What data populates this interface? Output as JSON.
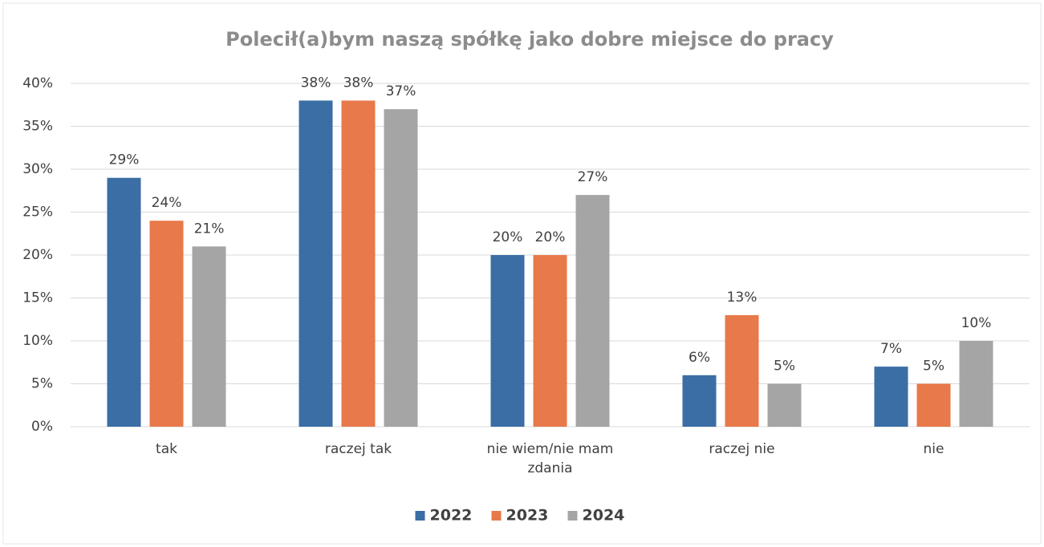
{
  "chart_data": {
    "type": "bar",
    "title": "Polecił(a)bym naszą spółkę jako dobre miejsce do pracy",
    "categories": [
      "tak",
      "raczej tak",
      "nie wiem/nie mam zdania",
      "raczej nie",
      "nie"
    ],
    "series": [
      {
        "name": "2022",
        "color": "#3a6ea5",
        "values": [
          29,
          38,
          20,
          6,
          7
        ],
        "value_labels": [
          "29%",
          "38%",
          "20%",
          "6%",
          "7%"
        ]
      },
      {
        "name": "2023",
        "color": "#e8794a",
        "values": [
          24,
          38,
          20,
          13,
          5
        ],
        "value_labels": [
          "24%",
          "38%",
          "20%",
          "13%",
          "5%"
        ]
      },
      {
        "name": "2024",
        "color": "#a5a5a5",
        "values": [
          21,
          37,
          27,
          5,
          10
        ],
        "value_labels": [
          "21%",
          "37%",
          "27%",
          "5%",
          "10%"
        ]
      }
    ],
    "ylim": [
      0,
      40
    ],
    "yticks": [
      {
        "value": 0,
        "label": "0%"
      },
      {
        "value": 5,
        "label": "5%"
      },
      {
        "value": 10,
        "label": "10%"
      },
      {
        "value": 15,
        "label": "15%"
      },
      {
        "value": 20,
        "label": "20%"
      },
      {
        "value": 25,
        "label": "25%"
      },
      {
        "value": 30,
        "label": "30%"
      },
      {
        "value": 35,
        "label": "35%"
      },
      {
        "value": 40,
        "label": "40%"
      }
    ],
    "grid": true,
    "legend": "bottom"
  }
}
